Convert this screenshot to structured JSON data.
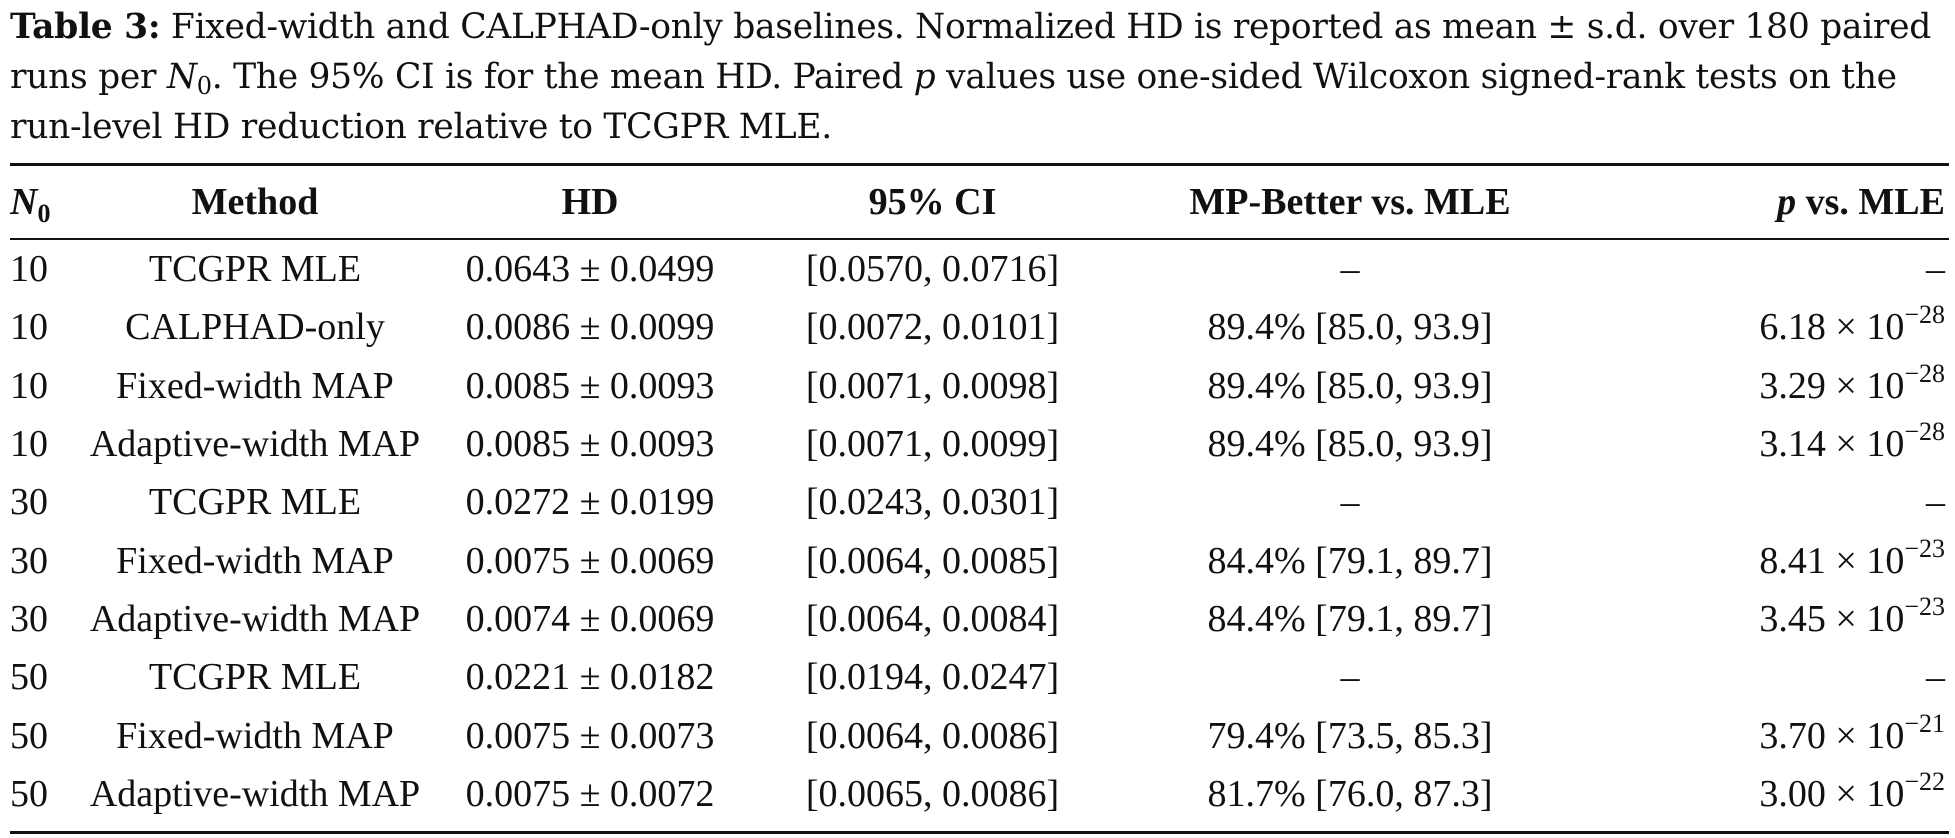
{
  "caption": {
    "label": "Table 3:",
    "text_1": " Fixed-width and CALPHAD-only baselines. Normalized HD is reported as mean ± s.d. over 180 paired runs per ",
    "n_symbol": "N",
    "n_sub": "0",
    "text_2": ". The 95% CI is for the mean HD. Paired ",
    "p_symbol": "p",
    "text_3": " values use one-sided Wilcoxon signed-rank tests on the run-level HD reduction relative to TCGPR MLE."
  },
  "table": {
    "headers": {
      "n0_symbol": "N",
      "n0_sub": "0",
      "method": "Method",
      "hd": "HD",
      "ci": "95% CI",
      "mp_better": "MP-Better vs. MLE",
      "p_symbol": "p",
      "p_rest": " vs. MLE"
    },
    "rows": [
      {
        "n0": "10",
        "method": "TCGPR MLE",
        "hd": "0.0643 ± 0.0499",
        "ci": "[0.0570, 0.0716]",
        "mp": "–",
        "p_mant": "–",
        "p_exp": ""
      },
      {
        "n0": "10",
        "method": "CALPHAD-only",
        "hd": "0.0086 ± 0.0099",
        "ci": "[0.0072, 0.0101]",
        "mp": "89.4% [85.0, 93.9]",
        "p_mant": "6.18 × 10",
        "p_exp": "−28"
      },
      {
        "n0": "10",
        "method": "Fixed-width MAP",
        "hd": "0.0085 ± 0.0093",
        "ci": "[0.0071, 0.0098]",
        "mp": "89.4% [85.0, 93.9]",
        "p_mant": "3.29 × 10",
        "p_exp": "−28"
      },
      {
        "n0": "10",
        "method": "Adaptive-width MAP",
        "hd": "0.0085 ± 0.0093",
        "ci": "[0.0071, 0.0099]",
        "mp": "89.4% [85.0, 93.9]",
        "p_mant": "3.14 × 10",
        "p_exp": "−28"
      },
      {
        "n0": "30",
        "method": "TCGPR MLE",
        "hd": "0.0272 ± 0.0199",
        "ci": "[0.0243, 0.0301]",
        "mp": "–",
        "p_mant": "–",
        "p_exp": ""
      },
      {
        "n0": "30",
        "method": "Fixed-width MAP",
        "hd": "0.0075 ± 0.0069",
        "ci": "[0.0064, 0.0085]",
        "mp": "84.4% [79.1, 89.7]",
        "p_mant": "8.41 × 10",
        "p_exp": "−23"
      },
      {
        "n0": "30",
        "method": "Adaptive-width MAP",
        "hd": "0.0074 ± 0.0069",
        "ci": "[0.0064, 0.0084]",
        "mp": "84.4% [79.1, 89.7]",
        "p_mant": "3.45 × 10",
        "p_exp": "−23"
      },
      {
        "n0": "50",
        "method": "TCGPR MLE",
        "hd": "0.0221 ± 0.0182",
        "ci": "[0.0194, 0.0247]",
        "mp": "–",
        "p_mant": "–",
        "p_exp": ""
      },
      {
        "n0": "50",
        "method": "Fixed-width MAP",
        "hd": "0.0075 ± 0.0073",
        "ci": "[0.0064, 0.0086]",
        "mp": "79.4% [73.5, 85.3]",
        "p_mant": "3.70 × 10",
        "p_exp": "−21"
      },
      {
        "n0": "50",
        "method": "Adaptive-width MAP",
        "hd": "0.0075 ± 0.0072",
        "ci": "[0.0065, 0.0086]",
        "mp": "81.7% [76.0, 87.3]",
        "p_mant": "3.00 × 10",
        "p_exp": "−22"
      }
    ]
  }
}
